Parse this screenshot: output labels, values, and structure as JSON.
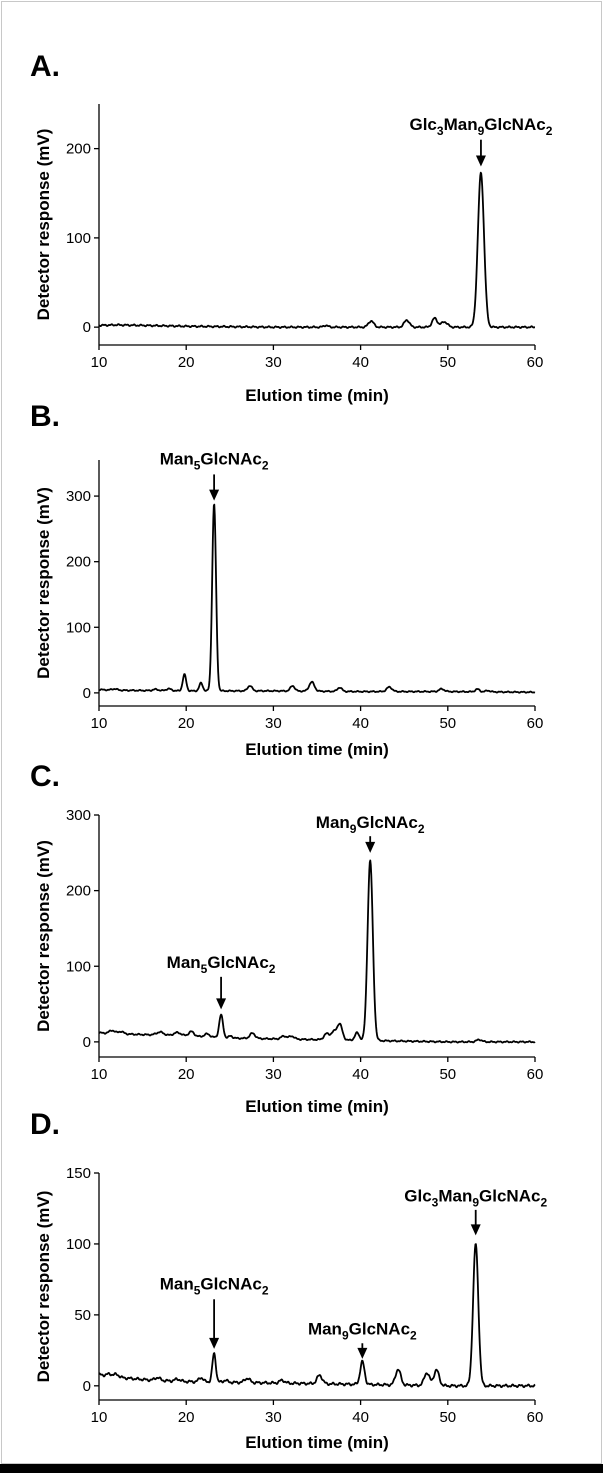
{
  "chart_data": [
    {
      "type": "line",
      "panel": "A.",
      "xlabel": "Elution time (min)",
      "ylabel": "Detector response (mV)",
      "xlim": [
        10,
        60
      ],
      "ylim": [
        -20,
        250
      ],
      "xticks": [
        10,
        20,
        30,
        40,
        50,
        60
      ],
      "yticks": [
        0,
        100,
        200
      ],
      "baseline": [
        [
          10,
          2
        ],
        [
          12,
          2.5
        ],
        [
          20,
          1
        ],
        [
          30,
          0
        ],
        [
          40,
          0
        ],
        [
          50,
          0
        ],
        [
          55,
          0
        ],
        [
          60,
          0
        ]
      ],
      "peaks": [
        {
          "x": 36.0,
          "y": 2,
          "w": 0.25
        },
        {
          "x": 41.2,
          "y": 7,
          "w": 0.3
        },
        {
          "x": 45.3,
          "y": 8,
          "w": 0.3
        },
        {
          "x": 48.5,
          "y": 10,
          "w": 0.3
        },
        {
          "x": 49.6,
          "y": 6,
          "w": 0.35
        },
        {
          "x": 53.8,
          "y": 173,
          "w": 0.35
        }
      ],
      "annotations": [
        {
          "parts": [
            [
              "Glc",
              ""
            ],
            [
              "3",
              "sub"
            ],
            [
              "Man",
              ""
            ],
            [
              "9",
              "sub"
            ],
            [
              "GlcNAc",
              ""
            ],
            [
              "2",
              "sub"
            ]
          ],
          "text": "Glc3Man9GlcNAc2",
          "x": 53.8,
          "arrow_from": 210,
          "arrow_to": 180,
          "label_y": 221
        }
      ]
    },
    {
      "type": "line",
      "panel": "B.",
      "xlabel": "Elution time (min)",
      "ylabel": "Detector response (mV)",
      "xlim": [
        10,
        60
      ],
      "ylim": [
        -20,
        355
      ],
      "xticks": [
        10,
        20,
        30,
        40,
        50,
        60
      ],
      "yticks": [
        0,
        100,
        200,
        300
      ],
      "baseline": [
        [
          10,
          5
        ],
        [
          12,
          4
        ],
        [
          20,
          3
        ],
        [
          30,
          3
        ],
        [
          40,
          2
        ],
        [
          50,
          2
        ],
        [
          60,
          1
        ]
      ],
      "peaks": [
        {
          "x": 11.8,
          "y": 2,
          "w": 0.3
        },
        {
          "x": 16.5,
          "y": 2,
          "w": 0.3
        },
        {
          "x": 18.0,
          "y": 3,
          "w": 0.3
        },
        {
          "x": 19.8,
          "y": 25,
          "w": 0.2
        },
        {
          "x": 21.7,
          "y": 12,
          "w": 0.2
        },
        {
          "x": 23.2,
          "y": 285,
          "w": 0.22
        },
        {
          "x": 27.3,
          "y": 8,
          "w": 0.25
        },
        {
          "x": 32.2,
          "y": 8,
          "w": 0.25
        },
        {
          "x": 34.4,
          "y": 14,
          "w": 0.3
        },
        {
          "x": 37.6,
          "y": 6,
          "w": 0.25
        },
        {
          "x": 43.3,
          "y": 7,
          "w": 0.3
        },
        {
          "x": 49.3,
          "y": 4,
          "w": 0.3
        },
        {
          "x": 53.4,
          "y": 4,
          "w": 0.25
        },
        {
          "x": 54.6,
          "y": 2,
          "w": 0.25
        }
      ],
      "annotations": [
        {
          "parts": [
            [
              "Man",
              ""
            ],
            [
              "5",
              "sub"
            ],
            [
              "GlcNAc",
              ""
            ],
            [
              "2",
              "sub"
            ]
          ],
          "text": "Man5GlcNAc2",
          "x": 23.2,
          "arrow_from": 333,
          "arrow_to": 293,
          "label_y": 348
        }
      ]
    },
    {
      "type": "line",
      "panel": "C.",
      "xlabel": "Elution time (min)",
      "ylabel": "Detector response (mV)",
      "xlim": [
        10,
        60
      ],
      "ylim": [
        -20,
        300
      ],
      "xticks": [
        10,
        20,
        30,
        40,
        50,
        60
      ],
      "yticks": [
        0,
        100,
        200,
        300
      ],
      "baseline": [
        [
          10,
          12
        ],
        [
          14,
          10
        ],
        [
          20,
          8
        ],
        [
          25,
          5
        ],
        [
          30,
          4
        ],
        [
          35,
          3
        ],
        [
          45,
          1
        ],
        [
          50,
          0
        ],
        [
          60,
          0
        ]
      ],
      "peaks": [
        {
          "x": 11.5,
          "y": 4,
          "w": 0.3
        },
        {
          "x": 12.5,
          "y": 3,
          "w": 0.3
        },
        {
          "x": 17.0,
          "y": 4,
          "w": 0.4
        },
        {
          "x": 19.0,
          "y": 4,
          "w": 0.4
        },
        {
          "x": 20.6,
          "y": 6,
          "w": 0.3
        },
        {
          "x": 22.4,
          "y": 4,
          "w": 0.3
        },
        {
          "x": 24.0,
          "y": 30,
          "w": 0.22
        },
        {
          "x": 25.1,
          "y": 3,
          "w": 0.2
        },
        {
          "x": 27.6,
          "y": 7,
          "w": 0.3
        },
        {
          "x": 31.2,
          "y": 4,
          "w": 0.3
        },
        {
          "x": 32.1,
          "y": 4,
          "w": 0.3
        },
        {
          "x": 36.1,
          "y": 8,
          "w": 0.3
        },
        {
          "x": 36.9,
          "y": 10,
          "w": 0.3
        },
        {
          "x": 37.6,
          "y": 21,
          "w": 0.3
        },
        {
          "x": 39.6,
          "y": 10,
          "w": 0.25
        },
        {
          "x": 41.1,
          "y": 238,
          "w": 0.3
        },
        {
          "x": 53.6,
          "y": 3,
          "w": 0.3
        }
      ],
      "annotations": [
        {
          "parts": [
            [
              "Man",
              ""
            ],
            [
              "9",
              "sub"
            ],
            [
              "GlcNAc",
              ""
            ],
            [
              "2",
              "sub"
            ]
          ],
          "text": "Man9GlcNAc2",
          "x": 41.1,
          "arrow_from": 272,
          "arrow_to": 250,
          "label_y": 283
        },
        {
          "parts": [
            [
              "Man",
              ""
            ],
            [
              "5",
              "sub"
            ],
            [
              "GlcNAc",
              ""
            ],
            [
              "2",
              "sub"
            ]
          ],
          "text": "Man5GlcNAc2",
          "x": 24.0,
          "arrow_from": 86,
          "arrow_to": 43,
          "label_y": 98
        }
      ]
    },
    {
      "type": "line",
      "panel": "D.",
      "xlabel": "Elution time (min)",
      "ylabel": "Detector response (mV)",
      "xlim": [
        10,
        60
      ],
      "ylim": [
        -10,
        150
      ],
      "xticks": [
        10,
        20,
        30,
        40,
        50,
        60
      ],
      "yticks": [
        0,
        50,
        100,
        150
      ],
      "baseline": [
        [
          10,
          8
        ],
        [
          12,
          6
        ],
        [
          16,
          4
        ],
        [
          20,
          3
        ],
        [
          30,
          2
        ],
        [
          40,
          1
        ],
        [
          50,
          0
        ],
        [
          60,
          0
        ]
      ],
      "peaks": [
        {
          "x": 11.2,
          "y": 1.5,
          "w": 0.3
        },
        {
          "x": 12.0,
          "y": 2,
          "w": 0.3
        },
        {
          "x": 16.7,
          "y": 2,
          "w": 0.3
        },
        {
          "x": 19.0,
          "y": 1.5,
          "w": 0.3
        },
        {
          "x": 21.7,
          "y": 3,
          "w": 0.25
        },
        {
          "x": 23.2,
          "y": 20,
          "w": 0.2
        },
        {
          "x": 24.5,
          "y": 1.5,
          "w": 0.2
        },
        {
          "x": 27.0,
          "y": 3,
          "w": 0.3
        },
        {
          "x": 31.0,
          "y": 2,
          "w": 0.3
        },
        {
          "x": 35.3,
          "y": 6,
          "w": 0.3
        },
        {
          "x": 40.2,
          "y": 16,
          "w": 0.25
        },
        {
          "x": 44.3,
          "y": 11,
          "w": 0.3
        },
        {
          "x": 47.6,
          "y": 9,
          "w": 0.3
        },
        {
          "x": 48.7,
          "y": 11,
          "w": 0.3
        },
        {
          "x": 53.2,
          "y": 100,
          "w": 0.3
        }
      ],
      "annotations": [
        {
          "parts": [
            [
              "Glc",
              ""
            ],
            [
              "3",
              "sub"
            ],
            [
              "Man",
              ""
            ],
            [
              "9",
              "sub"
            ],
            [
              "GlcNAc",
              ""
            ],
            [
              "2",
              "sub"
            ]
          ],
          "text": "Glc3Man9GlcNAc2",
          "x": 53.2,
          "arrow_from": 124,
          "arrow_to": 106,
          "label_y": 130
        },
        {
          "parts": [
            [
              "Man",
              ""
            ],
            [
              "5",
              "sub"
            ],
            [
              "GlcNAc",
              ""
            ],
            [
              "2",
              "sub"
            ]
          ],
          "text": "Man5GlcNAc2",
          "x": 23.2,
          "arrow_from": 61,
          "arrow_to": 26,
          "label_y": 68
        },
        {
          "parts": [
            [
              "Man",
              ""
            ],
            [
              "9",
              "sub"
            ],
            [
              "GlcNAc",
              ""
            ],
            [
              "2",
              "sub"
            ]
          ],
          "text": "Man9GlcNAc2",
          "x": 40.2,
          "arrow_from": 30,
          "arrow_to": 19,
          "label_y": 36
        }
      ]
    }
  ]
}
